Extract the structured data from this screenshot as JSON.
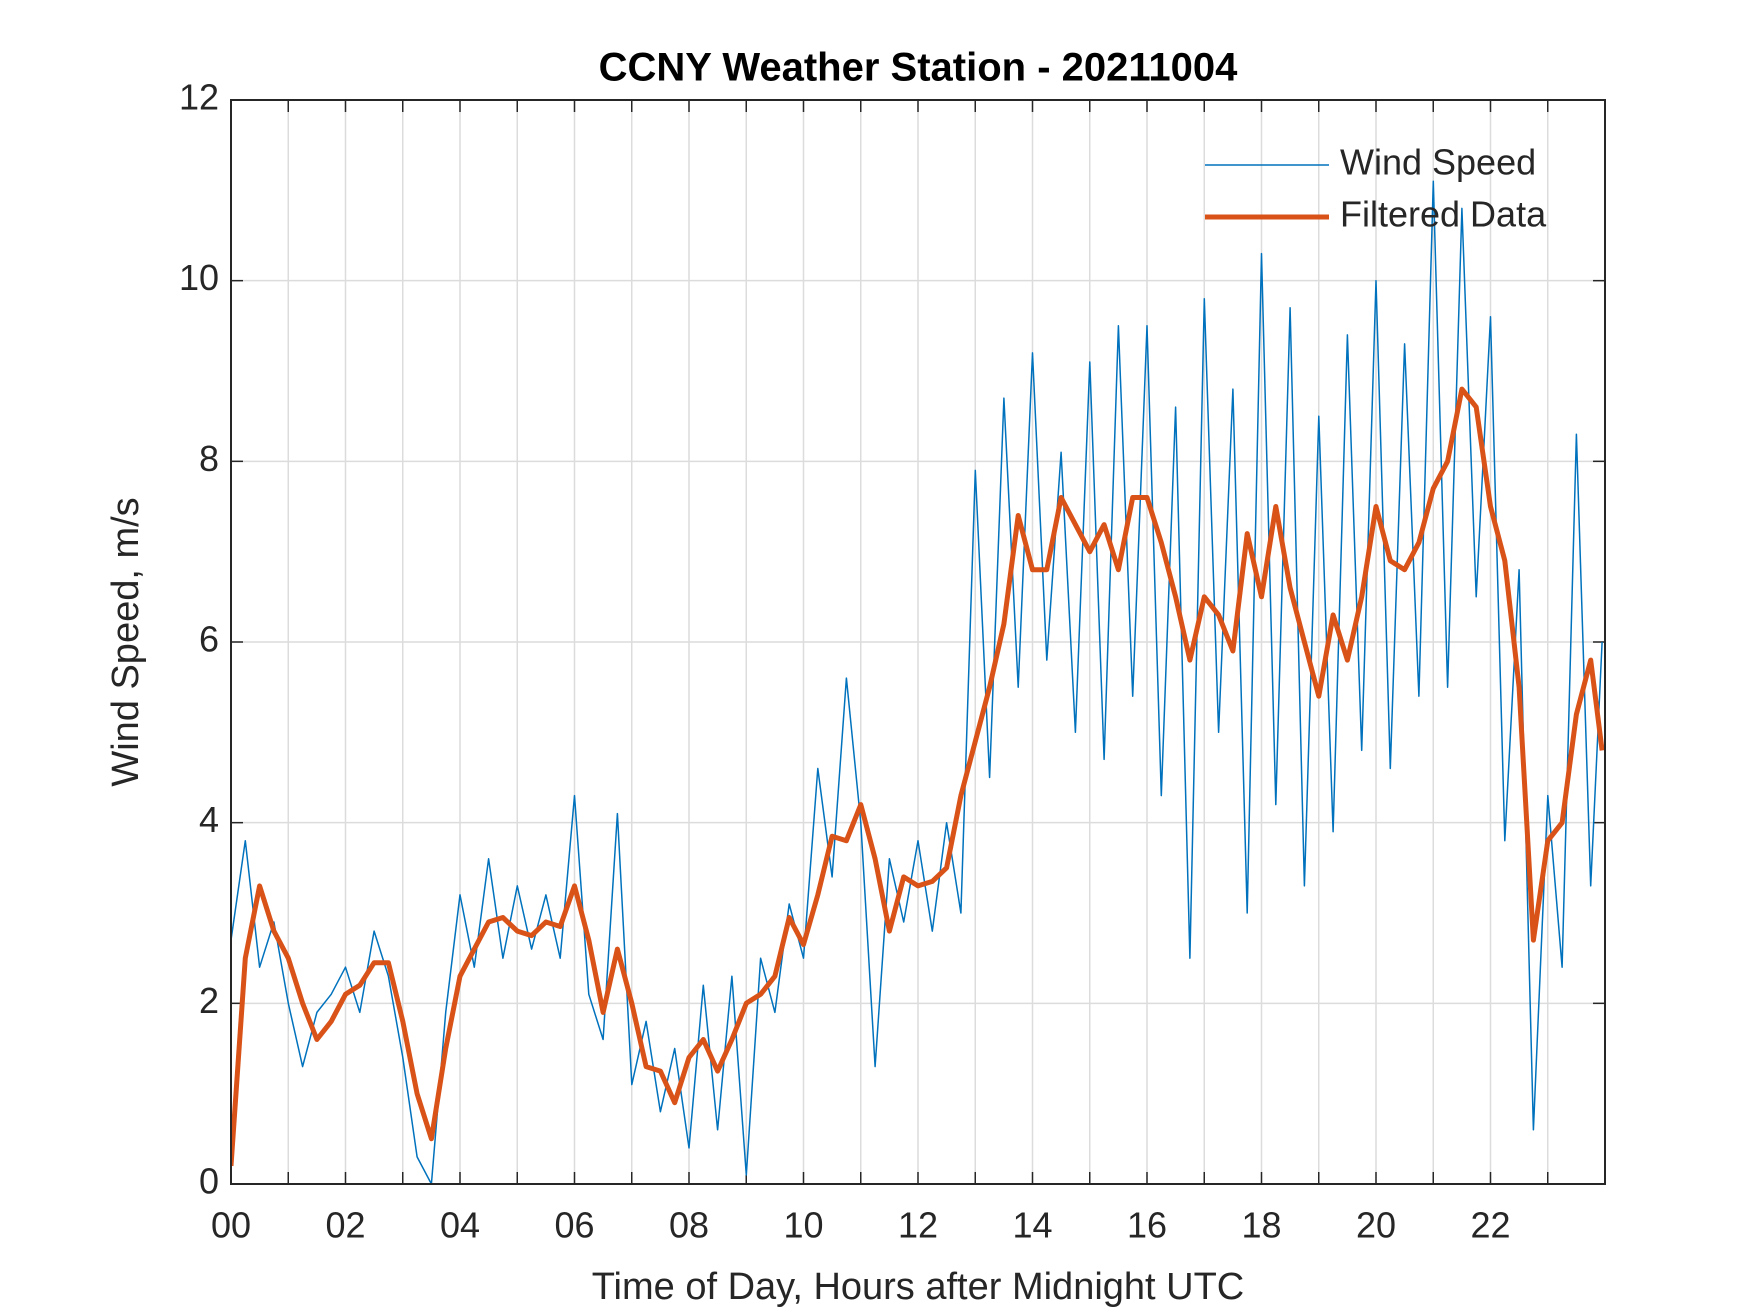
{
  "chart_data": {
    "type": "line",
    "title": "CCNY Weather Station - 20211004",
    "x_label": "Time of Day, Hours after Midnight UTC",
    "y_label": "Wind Speed, m/s",
    "x": [
      0,
      0.25,
      0.5,
      0.75,
      1,
      1.25,
      1.5,
      1.75,
      2,
      2.25,
      2.5,
      2.75,
      3,
      3.25,
      3.5,
      3.75,
      4,
      4.25,
      4.5,
      4.75,
      5,
      5.25,
      5.5,
      5.75,
      6,
      6.25,
      6.5,
      6.75,
      7,
      7.25,
      7.5,
      7.75,
      8,
      8.25,
      8.5,
      8.75,
      9,
      9.25,
      9.5,
      9.75,
      10,
      10.25,
      10.5,
      10.75,
      11,
      11.25,
      11.5,
      11.75,
      12,
      12.25,
      12.5,
      12.75,
      13,
      13.25,
      13.5,
      13.75,
      14,
      14.25,
      14.5,
      14.75,
      15,
      15.25,
      15.5,
      15.75,
      16,
      16.25,
      16.5,
      16.75,
      17,
      17.25,
      17.5,
      17.75,
      18,
      18.25,
      18.5,
      18.75,
      19,
      19.25,
      19.5,
      19.75,
      20,
      20.25,
      20.5,
      20.75,
      21,
      21.25,
      21.5,
      21.75,
      22,
      22.25,
      22.5,
      22.75,
      23,
      23.25,
      23.5,
      23.75,
      23.95
    ],
    "series": [
      {
        "name": "Wind Speed",
        "color": "#0072BD",
        "line_width": 1.5,
        "values": [
          2.7,
          3.8,
          2.4,
          2.9,
          2.0,
          1.3,
          1.9,
          2.1,
          2.4,
          1.9,
          2.8,
          2.3,
          1.4,
          0.3,
          0.0,
          1.9,
          3.2,
          2.4,
          3.6,
          2.5,
          3.3,
          2.6,
          3.2,
          2.5,
          4.3,
          2.1,
          1.6,
          4.1,
          1.1,
          1.8,
          0.8,
          1.5,
          0.4,
          2.2,
          0.6,
          2.3,
          0.1,
          2.5,
          1.9,
          3.1,
          2.5,
          4.6,
          3.4,
          5.6,
          4.0,
          1.3,
          3.6,
          2.9,
          3.8,
          2.8,
          4.0,
          3.0,
          7.9,
          4.5,
          8.7,
          5.5,
          9.2,
          5.8,
          8.1,
          5.0,
          9.1,
          4.7,
          9.5,
          5.4,
          9.5,
          4.3,
          8.6,
          2.5,
          9.8,
          5.0,
          8.8,
          3.0,
          10.3,
          4.2,
          9.7,
          3.3,
          8.5,
          3.9,
          9.4,
          4.8,
          10.0,
          4.6,
          9.3,
          5.4,
          11.1,
          5.5,
          10.8,
          6.5,
          9.6,
          3.8,
          6.8,
          0.6,
          4.3,
          2.4,
          8.3,
          3.3,
          6.0
        ]
      },
      {
        "name": "Filtered Data",
        "color": "#D95319",
        "line_width": 5,
        "values": [
          0.2,
          2.5,
          3.3,
          2.8,
          2.5,
          2.0,
          1.6,
          1.8,
          2.1,
          2.2,
          2.45,
          2.45,
          1.8,
          1.0,
          0.5,
          1.5,
          2.3,
          2.6,
          2.9,
          2.95,
          2.8,
          2.75,
          2.9,
          2.85,
          3.3,
          2.7,
          1.9,
          2.6,
          2.0,
          1.3,
          1.25,
          0.9,
          1.4,
          1.6,
          1.25,
          1.6,
          2.0,
          2.1,
          2.3,
          2.95,
          2.65,
          3.2,
          3.85,
          3.8,
          4.2,
          3.6,
          2.8,
          3.4,
          3.3,
          3.35,
          3.5,
          4.3,
          4.9,
          5.5,
          6.2,
          7.4,
          6.8,
          6.8,
          7.6,
          7.3,
          7.0,
          7.3,
          6.8,
          7.6,
          7.6,
          7.1,
          6.5,
          5.8,
          6.5,
          6.3,
          5.9,
          7.2,
          6.5,
          7.5,
          6.6,
          6.0,
          5.4,
          6.3,
          5.8,
          6.5,
          7.5,
          6.9,
          6.8,
          7.1,
          7.7,
          8.0,
          8.8,
          8.6,
          7.5,
          6.9,
          5.5,
          2.7,
          3.8,
          4.0,
          5.2,
          5.8,
          4.8
        ]
      }
    ],
    "xlim": [
      0,
      24
    ],
    "xticks": [
      {
        "value": 0,
        "label": "00"
      },
      {
        "value": 2,
        "label": "02"
      },
      {
        "value": 4,
        "label": "04"
      },
      {
        "value": 6,
        "label": "06"
      },
      {
        "value": 8,
        "label": "08"
      },
      {
        "value": 10,
        "label": "10"
      },
      {
        "value": 12,
        "label": "12"
      },
      {
        "value": 14,
        "label": "14"
      },
      {
        "value": 16,
        "label": "16"
      },
      {
        "value": 18,
        "label": "18"
      },
      {
        "value": 20,
        "label": "20"
      },
      {
        "value": 22,
        "label": "22"
      }
    ],
    "xminorticks": [
      1,
      3,
      5,
      7,
      9,
      11,
      13,
      15,
      17,
      19,
      21,
      23
    ],
    "ylim": [
      0,
      12
    ],
    "yticks": [
      0,
      2,
      4,
      6,
      8,
      10,
      12
    ],
    "grid": true,
    "legend": "upper right"
  }
}
